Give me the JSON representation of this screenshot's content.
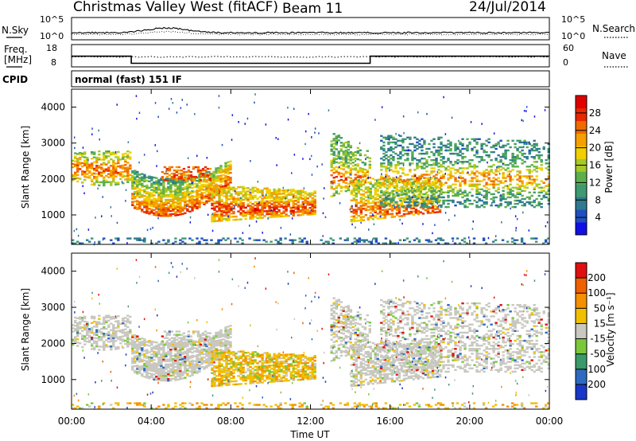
{
  "header": {
    "site": "Christmas Valley West (fitACF)",
    "beam": "Beam 11",
    "date": "24/Jul/2014"
  },
  "sky_panel": {
    "left_label": "N.Sky",
    "right_label": "N.Search",
    "left_ticks": [
      "10^5",
      "10^0"
    ],
    "right_ticks": [
      "10^5",
      "10^0"
    ]
  },
  "freq_panel": {
    "left_label_line1": "Freq.",
    "left_label_line2": "[MHz]",
    "right_label": "Nave",
    "left_ticks": [
      "18",
      "8"
    ],
    "right_ticks": [
      "60",
      "0"
    ],
    "freq_steps": [
      [
        0,
        12.8
      ],
      [
        3,
        9.6
      ],
      [
        15,
        12.8
      ],
      [
        24,
        12.8
      ]
    ]
  },
  "cpid": {
    "label": "CPID",
    "mode": "normal (fast) 151 IF"
  },
  "chart_data": [
    {
      "type": "heatmap",
      "name": "power",
      "ylabel": "Slant Range [km]",
      "y_ticks": [
        "1000",
        "2000",
        "3000",
        "4000"
      ],
      "ylim": [
        180,
        4500
      ],
      "xlim": [
        0,
        24
      ],
      "colorbar": {
        "label": "Power [dB]",
        "ticks": [
          "4",
          "8",
          "12",
          "16",
          "20",
          "24",
          "28"
        ],
        "colors": [
          "#1010e6",
          "#2050c0",
          "#2f7a8f",
          "#3f9a70",
          "#5bb04c",
          "#a6c828",
          "#f0d000",
          "#f5a000",
          "#f06a00",
          "#e82800",
          "#e00000"
        ]
      }
    },
    {
      "type": "heatmap",
      "name": "velocity",
      "ylabel": "Slant Range [km]",
      "y_ticks": [
        "1000",
        "2000",
        "3000",
        "4000"
      ],
      "ylim": [
        180,
        4500
      ],
      "xlim": [
        0,
        24
      ],
      "colorbar": {
        "label": "Velocity [m s⁻¹]",
        "ticks": [
          "200",
          "100",
          "50",
          "15",
          "-15",
          "-50",
          "-100",
          "-200"
        ],
        "colors": [
          "#1838c8",
          "#2e6ac0",
          "#3a9a6a",
          "#7ac83a",
          "#c8c8c0",
          "#f0c000",
          "#f59000",
          "#f06000",
          "#e01010"
        ]
      }
    }
  ],
  "x_axis": {
    "ticks": [
      "00:00",
      "04:00",
      "08:00",
      "12:00",
      "16:00",
      "20:00",
      "00:00"
    ],
    "label": "Time UT"
  }
}
